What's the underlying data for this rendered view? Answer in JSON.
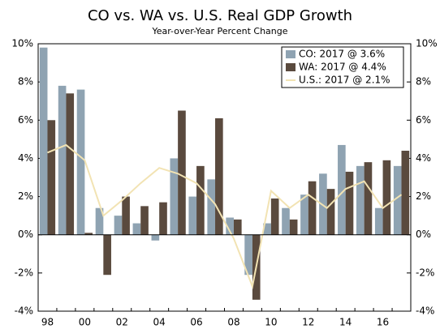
{
  "chart_data": {
    "type": "bar",
    "title": "CO vs. WA vs. U.S. Real GDP Growth",
    "subtitle": "Year-over-Year Percent Change",
    "categories": [
      "98",
      null,
      "00",
      null,
      "02",
      null,
      "04",
      null,
      "06",
      null,
      "08",
      null,
      "10",
      null,
      "12",
      null,
      "14",
      null,
      "16",
      null
    ],
    "series": [
      {
        "name": "CO: 2017 @ 3.6%",
        "color": "#8fa3b2",
        "values": [
          9.8,
          7.8,
          7.6,
          1.4,
          1.0,
          0.6,
          -0.3,
          4.0,
          2.0,
          2.9,
          0.9,
          -2.1,
          0.6,
          1.4,
          2.1,
          3.2,
          4.7,
          3.6,
          1.4,
          3.6
        ]
      },
      {
        "name": "WA: 2017 @ 4.4%",
        "color": "#5a4a3e",
        "values": [
          6.0,
          7.4,
          0.1,
          -2.1,
          2.0,
          1.5,
          1.7,
          6.5,
          3.6,
          6.1,
          0.8,
          -3.4,
          1.9,
          0.8,
          2.8,
          2.4,
          3.3,
          3.8,
          3.9,
          4.4
        ]
      },
      {
        "name": "U.S.: 2017 @ 2.1%",
        "color": "#f2e3b3",
        "type": "line",
        "values": [
          4.3,
          4.7,
          3.9,
          1.0,
          1.8,
          2.7,
          3.5,
          3.2,
          2.7,
          1.6,
          -0.2,
          -2.7,
          2.3,
          1.4,
          2.1,
          1.4,
          2.4,
          2.8,
          1.4,
          2.1
        ]
      }
    ],
    "ylim": [
      -4,
      10
    ],
    "yticks": [
      {
        "value": -4,
        "label": "-4%"
      },
      {
        "value": -2,
        "label": "-2%"
      },
      {
        "value": 0,
        "label": "0%"
      },
      {
        "value": 2,
        "label": "2%"
      },
      {
        "value": 4,
        "label": "4%"
      },
      {
        "value": 6,
        "label": "6%"
      },
      {
        "value": 8,
        "label": "8%"
      },
      {
        "value": 10,
        "label": "10%"
      }
    ],
    "y2lim": [
      -4,
      10
    ],
    "y2ticks": [
      {
        "value": -4,
        "label": "-4%"
      },
      {
        "value": -2,
        "label": "-2%"
      },
      {
        "value": 0,
        "label": "0%"
      },
      {
        "value": 2,
        "label": "2%"
      },
      {
        "value": 4,
        "label": "4%"
      },
      {
        "value": 6,
        "label": "6%"
      },
      {
        "value": 8,
        "label": "8%"
      },
      {
        "value": 10,
        "label": "10%"
      }
    ],
    "legend": "upper right"
  }
}
